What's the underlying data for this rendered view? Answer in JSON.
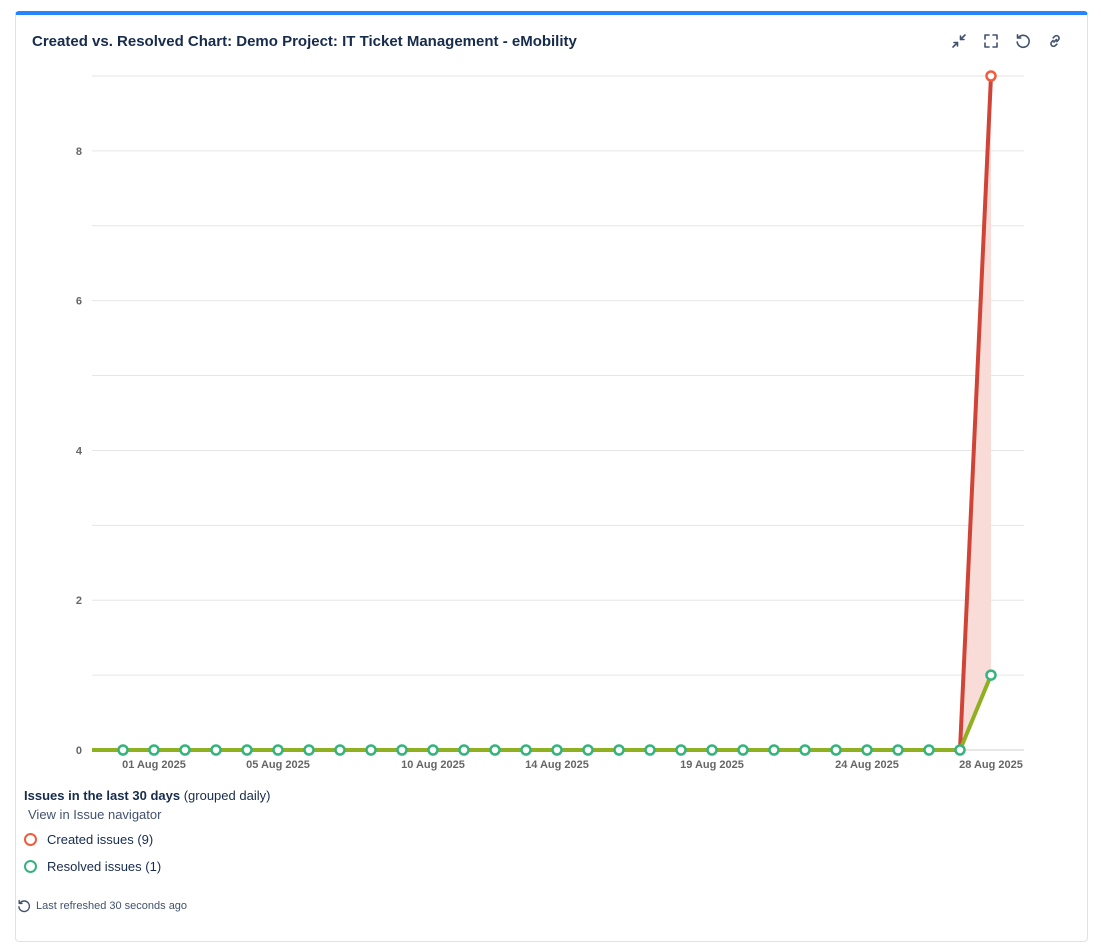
{
  "gadget": {
    "title": "Created vs. Resolved Chart: Demo Project: IT Ticket Management - eMobility",
    "toolbar": {
      "minimize_icon": "minimize-icon",
      "fullscreen_icon": "fullscreen-icon",
      "refresh_icon": "refresh-icon",
      "link_icon": "link-icon"
    }
  },
  "summary": {
    "heading_bold": "Issues in the last 30 days",
    "heading_suffix": "(grouped daily)",
    "navigator_link": "View in Issue navigator"
  },
  "legend": {
    "created_label": "Created issues (9)",
    "resolved_label": "Resolved issues (1)"
  },
  "footer": {
    "last_refreshed": "Last refreshed 30 seconds ago"
  },
  "colors": {
    "accent": "#2684ff",
    "created_line": "#d04437",
    "created_marker": "#f15c3c",
    "resolved_line": "#8eb021",
    "resolved_marker": "#36b37e",
    "difference_fill": "#f9dcd8"
  },
  "chart_data": {
    "type": "line",
    "x": [
      "30 Jul 2025",
      "31 Jul 2025",
      "01 Aug 2025",
      "02 Aug 2025",
      "03 Aug 2025",
      "04 Aug 2025",
      "05 Aug 2025",
      "06 Aug 2025",
      "07 Aug 2025",
      "08 Aug 2025",
      "09 Aug 2025",
      "10 Aug 2025",
      "11 Aug 2025",
      "12 Aug 2025",
      "13 Aug 2025",
      "14 Aug 2025",
      "15 Aug 2025",
      "16 Aug 2025",
      "17 Aug 2025",
      "18 Aug 2025",
      "19 Aug 2025",
      "20 Aug 2025",
      "21 Aug 2025",
      "22 Aug 2025",
      "23 Aug 2025",
      "24 Aug 2025",
      "25 Aug 2025",
      "26 Aug 2025",
      "27 Aug 2025",
      "28 Aug 2025"
    ],
    "x_tick_labels": [
      "01 Aug 2025",
      "05 Aug 2025",
      "10 Aug 2025",
      "14 Aug 2025",
      "19 Aug 2025",
      "24 Aug 2025",
      "28 Aug 2025"
    ],
    "series": [
      {
        "name": "Created issues (9)",
        "values": [
          0,
          0,
          0,
          0,
          0,
          0,
          0,
          0,
          0,
          0,
          0,
          0,
          0,
          0,
          0,
          0,
          0,
          0,
          0,
          0,
          0,
          0,
          0,
          0,
          0,
          0,
          0,
          0,
          0,
          9
        ]
      },
      {
        "name": "Resolved issues (1)",
        "values": [
          0,
          0,
          0,
          0,
          0,
          0,
          0,
          0,
          0,
          0,
          0,
          0,
          0,
          0,
          0,
          0,
          0,
          0,
          0,
          0,
          0,
          0,
          0,
          0,
          0,
          0,
          0,
          0,
          0,
          1
        ]
      }
    ],
    "y_ticks": [
      0,
      2,
      4,
      6,
      8
    ],
    "ylim": [
      0,
      9
    ],
    "grid": true,
    "legend_position": "bottom-left"
  }
}
